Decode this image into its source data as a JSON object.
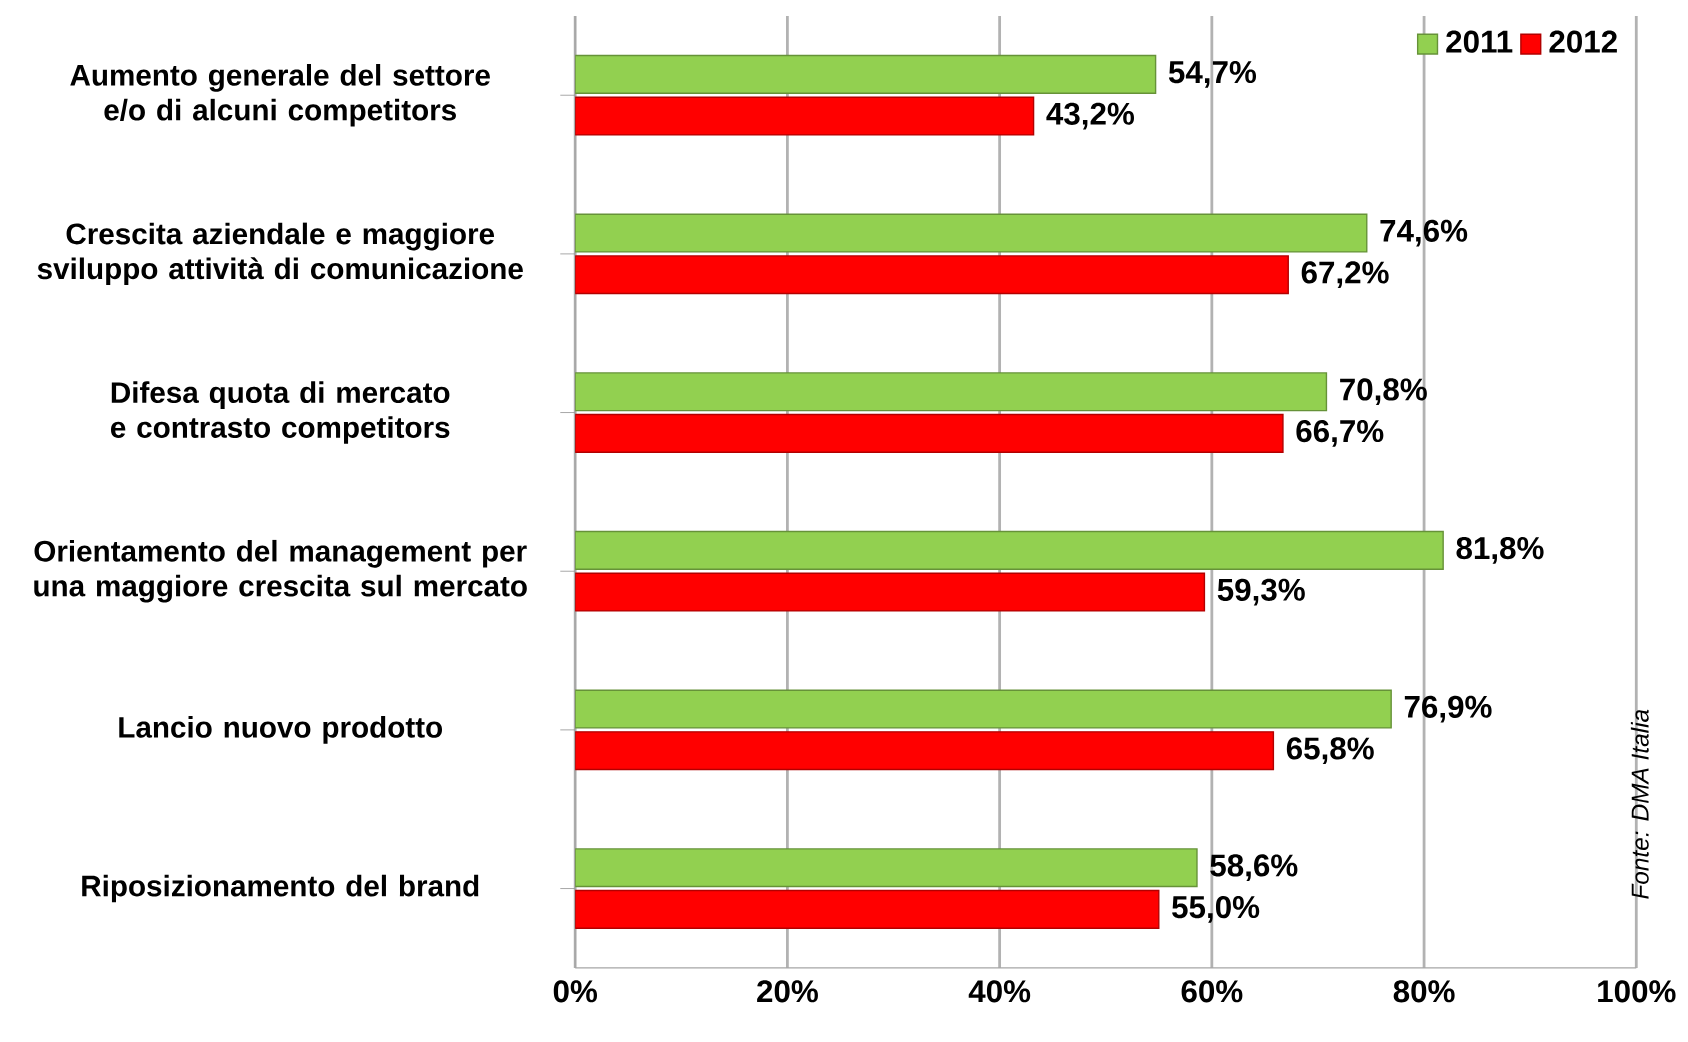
{
  "chart_data": {
    "type": "bar",
    "orientation": "horizontal",
    "categories": [
      "Aumento generale del settore e/o di alcuni competitors",
      "Crescita aziendale e maggiore sviluppo attività di comunicazione",
      "Difesa quota di mercato e contrasto competitors",
      "Orientamento del management per una maggiore crescita sul mercato",
      "Lancio nuovo prodotto",
      "Riposizionamento del brand"
    ],
    "series": [
      {
        "name": "2011",
        "color": "#92d050",
        "values": [
          54.7,
          74.6,
          70.8,
          81.8,
          76.9,
          58.6
        ],
        "value_labels": [
          "54,7%",
          "74,6%",
          "70,8%",
          "81,8%",
          "76,9%",
          "58,6%"
        ]
      },
      {
        "name": "2012",
        "color": "#ff0000",
        "values": [
          43.2,
          67.2,
          66.7,
          59.3,
          65.8,
          55.0
        ],
        "value_labels": [
          "43,2%",
          "67,2%",
          "66,7%",
          "59,3%",
          "65,8%",
          "55,0%"
        ]
      }
    ],
    "xlim": [
      0,
      100
    ],
    "xticks": [
      {
        "value": 0,
        "label": "0%"
      },
      {
        "value": 20,
        "label": "20%"
      },
      {
        "value": 40,
        "label": "40%"
      },
      {
        "value": 60,
        "label": "60%"
      },
      {
        "value": 80,
        "label": "80%"
      },
      {
        "value": 100,
        "label": "100%"
      }
    ],
    "grid": "x",
    "legend": "top right",
    "annotations": [
      "Fonte: DMA Italia"
    ]
  }
}
